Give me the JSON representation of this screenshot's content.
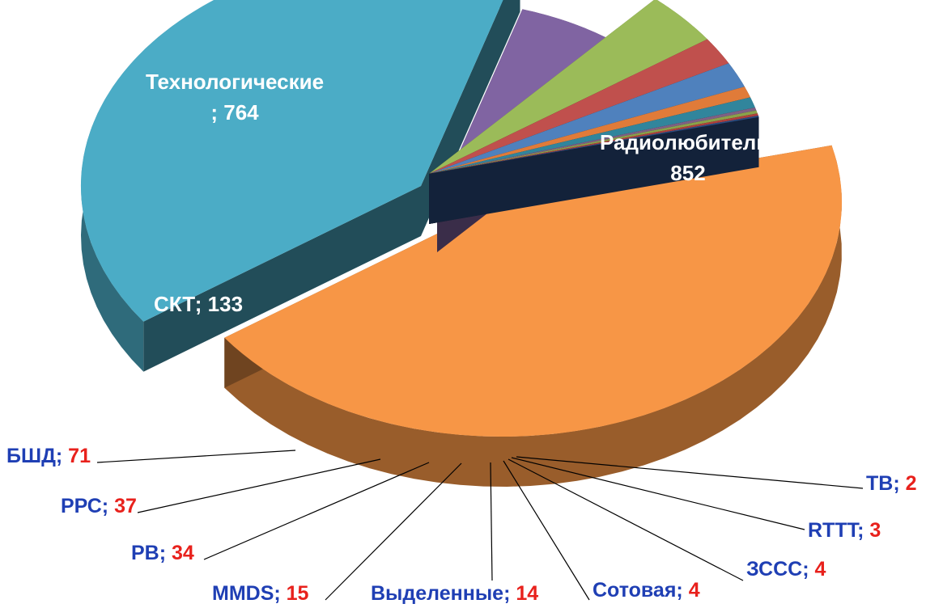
{
  "chart_data": {
    "type": "pie",
    "categories": [
      "Радиолюбители",
      "Технологические",
      "СКТ",
      "БШД",
      "РРС",
      "РВ",
      "MMDS",
      "Выделенные",
      "Сотовая",
      "ЗССС",
      "RTTT",
      "ТВ"
    ],
    "values": [
      852,
      764,
      133,
      71,
      37,
      34,
      15,
      14,
      4,
      4,
      3,
      2
    ],
    "separator": ";",
    "colors": [
      "#f79646",
      "#4bacc6",
      "#8064a2",
      "#9bbb59",
      "#c0504d",
      "#4f81bd",
      "#e07b39",
      "#31859c",
      "#7f6084",
      "#8aa24a",
      "#b0403c",
      "#2b4c80"
    ],
    "title": "",
    "legend": "none",
    "style": "3d-exploded"
  }
}
